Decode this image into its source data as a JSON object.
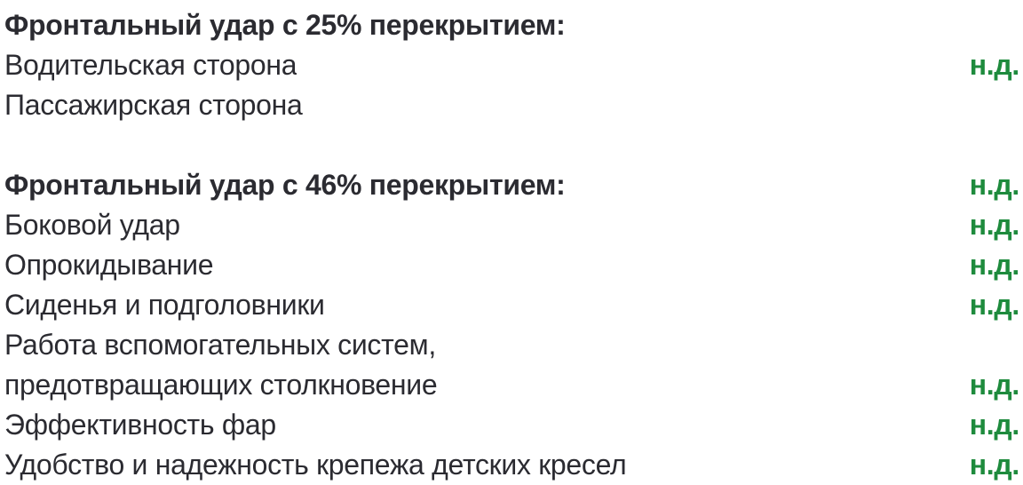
{
  "colors": {
    "text": "#2b2b31",
    "value_green": "#1e8b3d",
    "background": "#ffffff"
  },
  "safety_ratings": {
    "no_data_label": "н.д.",
    "rows": [
      {
        "label": "Фронтальный удар с 25% перекрытием:",
        "value": "",
        "style": "header"
      },
      {
        "label": "Водительская сторона",
        "value": "н.д.",
        "style": "normal"
      },
      {
        "label": "Пассажирская сторона",
        "value": "",
        "style": "normal"
      },
      {
        "label": "",
        "value": "",
        "style": "spacer"
      },
      {
        "label": "Фронтальный удар с 46% перекрытием:",
        "value": "н.д.",
        "style": "header"
      },
      {
        "label": "Боковой удар",
        "value": "н.д.",
        "style": "normal"
      },
      {
        "label": "Опрокидывание",
        "value": "н.д.",
        "style": "normal"
      },
      {
        "label": "Сиденья и подголовники",
        "value": "н.д.",
        "style": "normal"
      },
      {
        "label": "Работа вспомогательных систем,",
        "value": "",
        "style": "normal"
      },
      {
        "label": "предотвращающих столкновение",
        "value": "н.д.",
        "style": "normal"
      },
      {
        "label": "Эффективность фар",
        "value": "н.д.",
        "style": "normal"
      },
      {
        "label": "Удобство и надежность крепежа детских кресел",
        "value": "н.д.",
        "style": "normal"
      }
    ]
  }
}
